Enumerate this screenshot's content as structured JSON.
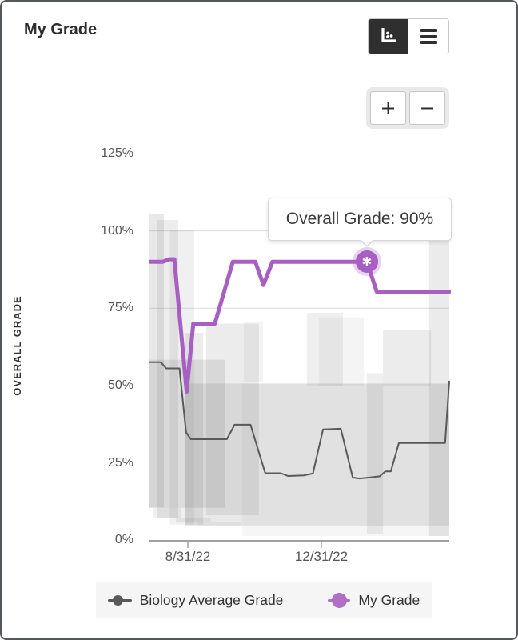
{
  "header": {
    "title": "My Grade"
  },
  "icons": {
    "chart_view": "scatter-chart-icon",
    "list_view": "hamburger-icon",
    "zoom_in_glyph": "+",
    "zoom_out_glyph": "−",
    "marker_glyph": "✱"
  },
  "tooltip": {
    "text": "Overall Grade: 90%"
  },
  "legend": {
    "items": [
      {
        "label": "Biology Average Grade",
        "color": "#595959"
      },
      {
        "label": "My Grade",
        "color": "#b16fc6"
      }
    ]
  },
  "colors": {
    "accent_purple": "#a75fc2",
    "halo_purple": "rgba(169,95,196,0.28)",
    "average_line": "#595959",
    "band_gray": "110,110,110",
    "grid": "#dcdcdc",
    "axis": "#9f9f9f",
    "toggle_active_bg": "#2f2f2f"
  },
  "chart_data": {
    "type": "line",
    "title": "My Grade",
    "ylabel": "OVERALL GRADE",
    "ylim": [
      0,
      125
    ],
    "yticks": [
      125,
      100,
      75,
      50,
      25,
      0
    ],
    "ytick_labels": [
      "125%",
      "100%",
      "75%",
      "50%",
      "25%",
      "0%"
    ],
    "xtick_labels": [
      "8/31/22",
      "12/31/22"
    ],
    "xticks_pct": [
      12.8,
      57.3
    ],
    "grid_levels": [
      125,
      100,
      75
    ],
    "legend_position": "bottom",
    "series": [
      {
        "name": "Biology Average Grade",
        "color": "#595959",
        "width": 2,
        "points": [
          [
            0,
            57.5
          ],
          [
            3.8,
            57.5
          ],
          [
            5.6,
            55.5
          ],
          [
            10,
            55.5
          ],
          [
            12.2,
            34.8
          ],
          [
            13.8,
            32.6
          ],
          [
            25.8,
            32.6
          ],
          [
            28.4,
            37.3
          ],
          [
            33.7,
            37.3
          ],
          [
            38.6,
            21.6
          ],
          [
            43.8,
            21.6
          ],
          [
            46.2,
            20.7
          ],
          [
            51.5,
            20.9
          ],
          [
            54.5,
            21.5
          ],
          [
            57.9,
            35.8
          ],
          [
            63.8,
            36
          ],
          [
            67.8,
            20.2
          ],
          [
            70,
            19.9
          ],
          [
            74,
            20.3
          ],
          [
            76.8,
            20.6
          ],
          [
            78.7,
            22.2
          ],
          [
            80.5,
            22.2
          ],
          [
            83.2,
            31.4
          ],
          [
            98.6,
            31.4
          ],
          [
            100,
            51.3
          ]
        ]
      },
      {
        "name": "My Grade",
        "color": "#a75fc2",
        "width": 5,
        "points": [
          [
            0,
            90
          ],
          [
            4.5,
            90
          ],
          [
            6.5,
            90.8
          ],
          [
            8.3,
            90.8
          ],
          [
            12.4,
            48
          ],
          [
            14.6,
            70
          ],
          [
            21.8,
            70
          ],
          [
            27.8,
            90
          ],
          [
            35.3,
            90
          ],
          [
            38,
            82.5
          ],
          [
            41,
            90
          ],
          [
            72.5,
            90
          ],
          [
            75.8,
            80.3
          ],
          [
            100,
            80.3
          ]
        ]
      }
    ],
    "bands": [
      [
        0,
        4.8,
        105.5,
        10.5,
        0.16
      ],
      [
        2.5,
        9.6,
        103.5,
        7,
        0.12
      ],
      [
        6.8,
        14.9,
        100.3,
        5,
        0.1
      ],
      [
        12,
        17.9,
        67,
        5,
        0.13
      ],
      [
        18.9,
        36.5,
        70,
        8,
        0.13
      ],
      [
        31.5,
        37.9,
        70.5,
        51,
        0.08
      ],
      [
        52.5,
        64.5,
        73.5,
        50,
        0.11
      ],
      [
        56.5,
        71.5,
        72,
        50,
        0.08
      ],
      [
        72.5,
        77.9,
        54,
        2,
        0.11
      ],
      [
        77.9,
        93.9,
        68,
        50,
        0.13
      ],
      [
        93.3,
        100,
        97,
        1.3,
        0.14
      ],
      [
        0,
        25.3,
        58.3,
        10.4,
        0.15
      ],
      [
        12,
        100,
        50.6,
        4.7,
        0.15
      ],
      [
        31,
        100,
        50.6,
        1.3,
        0.06
      ],
      [
        1.3,
        10.7,
        10.4,
        7.2,
        0.1
      ],
      [
        8.8,
        20.5,
        7.2,
        5.9,
        0.1
      ],
      [
        16,
        30.9,
        5.9,
        4.7,
        0.08
      ]
    ],
    "marker": {
      "x": 72.5,
      "y": 90,
      "label": "Overall Grade: 90%"
    }
  }
}
